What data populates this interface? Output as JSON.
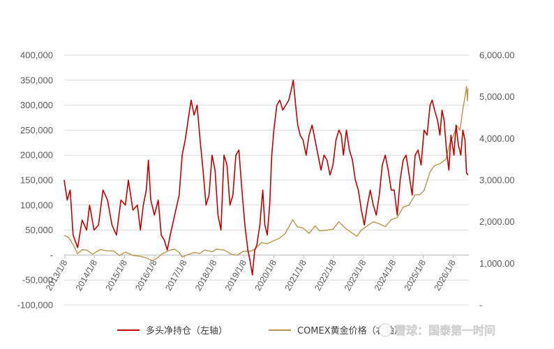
{
  "chart_data": {
    "type": "line",
    "title": "",
    "left_axis": {
      "min": -100000,
      "max": 400000,
      "ticks": [
        400000,
        350000,
        300000,
        250000,
        200000,
        150000,
        100000,
        50000,
        0,
        -50000,
        -100000
      ],
      "tick_labels": [
        "400,000",
        "350,000",
        "300,000",
        "250,000",
        "200,000",
        "150,000",
        "100,000",
        "50,000",
        "-",
        "-50,000",
        "-100,000"
      ]
    },
    "right_axis": {
      "min": 0,
      "max": 6000,
      "ticks": [
        6000,
        5000,
        4000,
        3000,
        2000,
        1000,
        0
      ],
      "tick_labels": [
        "6,000.00",
        "5,000.00",
        "4,000.00",
        "3,000.00",
        "2,000.00",
        "1,000.00",
        "-"
      ]
    },
    "x_axis": {
      "start": 2013.0,
      "end": 2026.55,
      "ticks": [
        2013.02,
        2014.02,
        2015.02,
        2016.02,
        2017.02,
        2018.02,
        2019.02,
        2020.02,
        2021.02,
        2022.02,
        2023.02,
        2024.02,
        2025.02,
        2026.02
      ],
      "tick_labels": [
        "2013/1/8",
        "2014/1/8",
        "2015/1/8",
        "2016/1/8",
        "2017/1/8",
        "2018/1/8",
        "2019/1/8",
        "2020/1/8",
        "2021/1/8",
        "2022/1/8",
        "2023/1/8",
        "2024/1/8",
        "2025/1/8",
        "2026/1/8"
      ]
    },
    "grid": "horizontal",
    "legend_position": "bottom",
    "series": [
      {
        "name": "多头净持仓（左轴）",
        "axis": "left",
        "color": "#C00000",
        "points": [
          [
            2013.0,
            150000
          ],
          [
            2013.1,
            110000
          ],
          [
            2013.2,
            130000
          ],
          [
            2013.3,
            40000
          ],
          [
            2013.45,
            15000
          ],
          [
            2013.6,
            70000
          ],
          [
            2013.75,
            50000
          ],
          [
            2013.85,
            100000
          ],
          [
            2014.0,
            50000
          ],
          [
            2014.15,
            60000
          ],
          [
            2014.3,
            130000
          ],
          [
            2014.45,
            110000
          ],
          [
            2014.6,
            60000
          ],
          [
            2014.75,
            40000
          ],
          [
            2014.9,
            110000
          ],
          [
            2015.05,
            100000
          ],
          [
            2015.15,
            150000
          ],
          [
            2015.3,
            90000
          ],
          [
            2015.45,
            100000
          ],
          [
            2015.55,
            50000
          ],
          [
            2015.65,
            100000
          ],
          [
            2015.75,
            130000
          ],
          [
            2015.82,
            190000
          ],
          [
            2015.9,
            110000
          ],
          [
            2016.02,
            80000
          ],
          [
            2016.15,
            110000
          ],
          [
            2016.25,
            40000
          ],
          [
            2016.35,
            30000
          ],
          [
            2016.45,
            10000
          ],
          [
            2016.55,
            40000
          ],
          [
            2016.7,
            80000
          ],
          [
            2016.85,
            120000
          ],
          [
            2016.95,
            200000
          ],
          [
            2017.05,
            230000
          ],
          [
            2017.15,
            270000
          ],
          [
            2017.25,
            310000
          ],
          [
            2017.35,
            280000
          ],
          [
            2017.45,
            300000
          ],
          [
            2017.55,
            230000
          ],
          [
            2017.65,
            170000
          ],
          [
            2017.75,
            100000
          ],
          [
            2017.85,
            120000
          ],
          [
            2017.95,
            200000
          ],
          [
            2018.05,
            170000
          ],
          [
            2018.15,
            80000
          ],
          [
            2018.25,
            50000
          ],
          [
            2018.35,
            200000
          ],
          [
            2018.45,
            180000
          ],
          [
            2018.55,
            100000
          ],
          [
            2018.65,
            120000
          ],
          [
            2018.75,
            200000
          ],
          [
            2018.85,
            210000
          ],
          [
            2018.95,
            130000
          ],
          [
            2019.05,
            60000
          ],
          [
            2019.15,
            10000
          ],
          [
            2019.22,
            -10000
          ],
          [
            2019.3,
            -40000
          ],
          [
            2019.38,
            10000
          ],
          [
            2019.45,
            20000
          ],
          [
            2019.55,
            60000
          ],
          [
            2019.65,
            130000
          ],
          [
            2019.72,
            60000
          ],
          [
            2019.8,
            40000
          ],
          [
            2019.88,
            100000
          ],
          [
            2019.95,
            200000
          ],
          [
            2020.02,
            250000
          ],
          [
            2020.12,
            300000
          ],
          [
            2020.22,
            310000
          ],
          [
            2020.32,
            290000
          ],
          [
            2020.42,
            300000
          ],
          [
            2020.52,
            310000
          ],
          [
            2020.6,
            330000
          ],
          [
            2020.67,
            350000
          ],
          [
            2020.75,
            300000
          ],
          [
            2020.82,
            260000
          ],
          [
            2020.9,
            240000
          ],
          [
            2021.0,
            230000
          ],
          [
            2021.1,
            200000
          ],
          [
            2021.2,
            240000
          ],
          [
            2021.3,
            260000
          ],
          [
            2021.4,
            230000
          ],
          [
            2021.5,
            200000
          ],
          [
            2021.6,
            170000
          ],
          [
            2021.7,
            200000
          ],
          [
            2021.8,
            190000
          ],
          [
            2021.9,
            160000
          ],
          [
            2022.0,
            180000
          ],
          [
            2022.1,
            230000
          ],
          [
            2022.2,
            250000
          ],
          [
            2022.28,
            240000
          ],
          [
            2022.35,
            200000
          ],
          [
            2022.45,
            250000
          ],
          [
            2022.55,
            210000
          ],
          [
            2022.65,
            190000
          ],
          [
            2022.75,
            150000
          ],
          [
            2022.85,
            130000
          ],
          [
            2022.95,
            90000
          ],
          [
            2023.05,
            60000
          ],
          [
            2023.15,
            100000
          ],
          [
            2023.25,
            130000
          ],
          [
            2023.35,
            100000
          ],
          [
            2023.45,
            80000
          ],
          [
            2023.55,
            120000
          ],
          [
            2023.65,
            180000
          ],
          [
            2023.75,
            200000
          ],
          [
            2023.85,
            170000
          ],
          [
            2023.95,
            130000
          ],
          [
            2024.05,
            130000
          ],
          [
            2024.15,
            80000
          ],
          [
            2024.25,
            150000
          ],
          [
            2024.35,
            190000
          ],
          [
            2024.45,
            200000
          ],
          [
            2024.55,
            160000
          ],
          [
            2024.65,
            120000
          ],
          [
            2024.75,
            200000
          ],
          [
            2024.85,
            210000
          ],
          [
            2024.95,
            180000
          ],
          [
            2025.05,
            250000
          ],
          [
            2025.15,
            240000
          ],
          [
            2025.25,
            300000
          ],
          [
            2025.32,
            310000
          ],
          [
            2025.4,
            290000
          ],
          [
            2025.5,
            270000
          ],
          [
            2025.58,
            240000
          ],
          [
            2025.65,
            290000
          ],
          [
            2025.72,
            270000
          ],
          [
            2025.8,
            210000
          ],
          [
            2025.88,
            170000
          ],
          [
            2025.95,
            240000
          ],
          [
            2026.05,
            200000
          ],
          [
            2026.12,
            260000
          ],
          [
            2026.2,
            220000
          ],
          [
            2026.28,
            200000
          ],
          [
            2026.35,
            250000
          ],
          [
            2026.42,
            230000
          ],
          [
            2026.47,
            165000
          ],
          [
            2026.52,
            160000
          ]
        ]
      },
      {
        "name": "COMEX黄金价格（右轴）",
        "axis": "right",
        "color": "#B8954A",
        "points": [
          [
            2013.0,
            1670
          ],
          [
            2013.15,
            1620
          ],
          [
            2013.3,
            1450
          ],
          [
            2013.45,
            1230
          ],
          [
            2013.6,
            1330
          ],
          [
            2013.75,
            1320
          ],
          [
            2013.95,
            1220
          ],
          [
            2014.2,
            1330
          ],
          [
            2014.45,
            1300
          ],
          [
            2014.65,
            1300
          ],
          [
            2014.85,
            1190
          ],
          [
            2015.05,
            1270
          ],
          [
            2015.3,
            1190
          ],
          [
            2015.55,
            1170
          ],
          [
            2015.8,
            1120
          ],
          [
            2015.95,
            1060
          ],
          [
            2016.1,
            1120
          ],
          [
            2016.3,
            1240
          ],
          [
            2016.55,
            1320
          ],
          [
            2016.7,
            1340
          ],
          [
            2016.85,
            1260
          ],
          [
            2016.95,
            1150
          ],
          [
            2017.1,
            1200
          ],
          [
            2017.35,
            1260
          ],
          [
            2017.55,
            1240
          ],
          [
            2017.7,
            1320
          ],
          [
            2017.95,
            1280
          ],
          [
            2018.1,
            1340
          ],
          [
            2018.35,
            1320
          ],
          [
            2018.6,
            1220
          ],
          [
            2018.8,
            1200
          ],
          [
            2019.0,
            1290
          ],
          [
            2019.25,
            1290
          ],
          [
            2019.4,
            1350
          ],
          [
            2019.6,
            1500
          ],
          [
            2019.8,
            1470
          ],
          [
            2020.0,
            1540
          ],
          [
            2020.2,
            1600
          ],
          [
            2020.4,
            1720
          ],
          [
            2020.58,
            1950
          ],
          [
            2020.65,
            2050
          ],
          [
            2020.8,
            1880
          ],
          [
            2021.0,
            1850
          ],
          [
            2021.2,
            1720
          ],
          [
            2021.4,
            1900
          ],
          [
            2021.55,
            1780
          ],
          [
            2021.75,
            1790
          ],
          [
            2022.0,
            1820
          ],
          [
            2022.2,
            2000
          ],
          [
            2022.4,
            1850
          ],
          [
            2022.6,
            1750
          ],
          [
            2022.8,
            1650
          ],
          [
            2022.95,
            1800
          ],
          [
            2023.15,
            1900
          ],
          [
            2023.35,
            2000
          ],
          [
            2023.55,
            1950
          ],
          [
            2023.75,
            1880
          ],
          [
            2023.95,
            2050
          ],
          [
            2024.15,
            2100
          ],
          [
            2024.35,
            2350
          ],
          [
            2024.55,
            2400
          ],
          [
            2024.75,
            2650
          ],
          [
            2024.9,
            2650
          ],
          [
            2025.05,
            2750
          ],
          [
            2025.25,
            3200
          ],
          [
            2025.4,
            3350
          ],
          [
            2025.6,
            3400
          ],
          [
            2025.78,
            3500
          ],
          [
            2025.92,
            3900
          ],
          [
            2026.05,
            4100
          ],
          [
            2026.15,
            4300
          ],
          [
            2026.25,
            4200
          ],
          [
            2026.35,
            4700
          ],
          [
            2026.42,
            5000
          ],
          [
            2026.47,
            5250
          ],
          [
            2026.5,
            4900
          ],
          [
            2026.52,
            5200
          ]
        ]
      }
    ]
  },
  "watermark": {
    "text": "雪球：国泰第一时间",
    "icon": "snowball-icon"
  }
}
